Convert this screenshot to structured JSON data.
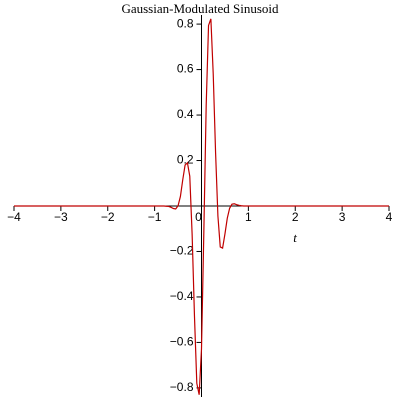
{
  "chart_data": {
    "type": "line",
    "title": "Gaussian-Modulated Sinusoid",
    "x_label": "t",
    "x": [
      -4,
      -1,
      -0.8,
      -0.75,
      -0.7,
      -0.65,
      -0.6,
      -0.55,
      -0.5,
      -0.45,
      -0.4,
      -0.35,
      -0.3,
      -0.25,
      -0.2,
      -0.15,
      -0.1,
      -0.05,
      0,
      0.05,
      0.1,
      0.15,
      0.2,
      0.25,
      0.3,
      0.35,
      0.4,
      0.45,
      0.5,
      0.55,
      0.6,
      0.65,
      0.7,
      0.75,
      0.8,
      0.85,
      0.9,
      4
    ],
    "series": [
      {
        "color": "#c00000",
        "values": [
          0,
          0,
          0,
          -0.001,
          -0.002,
          -0.006,
          -0.011,
          -0.013,
          0.001,
          0.042,
          0.115,
          0.18,
          0.19,
          0.131,
          -0.125,
          -0.484,
          -0.78,
          -0.83,
          -0.628,
          -0.113,
          0.442,
          0.794,
          0.823,
          0.581,
          0.237,
          -0.044,
          -0.18,
          -0.185,
          -0.123,
          -0.054,
          -0.01,
          0.008,
          0.01,
          0.006,
          0.003,
          0.001,
          0,
          0
        ]
      }
    ],
    "xlim": [
      -4,
      4
    ],
    "ylim": [
      -0.84,
      0.84
    ],
    "xticks": [
      {
        "value": -4,
        "label": "−4"
      },
      {
        "value": -3,
        "label": "−3"
      },
      {
        "value": -2,
        "label": "−2"
      },
      {
        "value": -1,
        "label": "−1"
      },
      0,
      1,
      2,
      3,
      4
    ],
    "yticks": [
      {
        "value": -0.8,
        "label": "−0.8"
      },
      {
        "value": -0.6,
        "label": "−0.6"
      },
      {
        "value": -0.4,
        "label": "−0.4"
      },
      {
        "value": -0.2,
        "label": "−0.2"
      },
      0.2,
      0.4,
      0.6,
      0.8
    ]
  }
}
